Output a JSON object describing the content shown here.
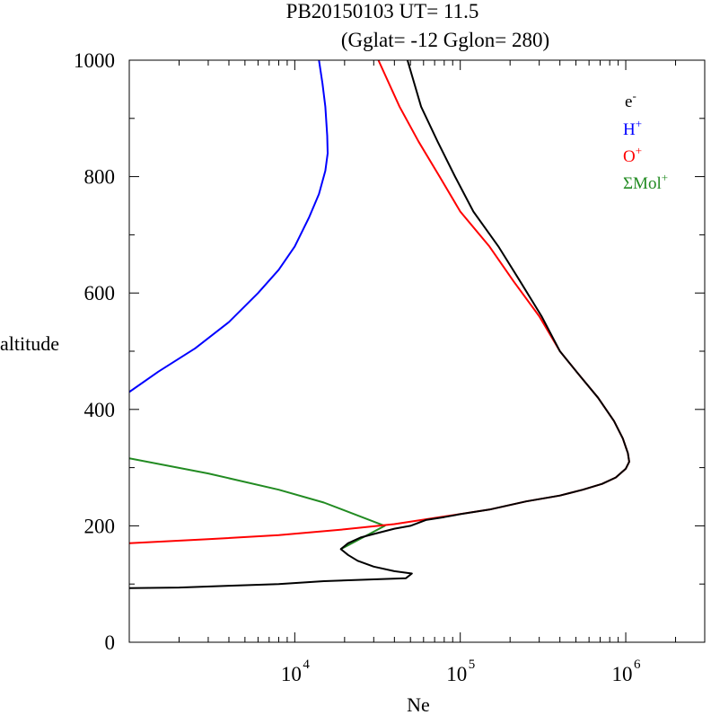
{
  "chart_data": {
    "type": "line",
    "title_line1": "PB20150103   UT=  11.5",
    "title_line2": "(Gglat= -12   Gglon=  280)",
    "xlabel": "Ne",
    "ylabel": "altitude",
    "xscale": "log",
    "xlim": [
      1000,
      3000000
    ],
    "ylim": [
      0,
      1000
    ],
    "x_ticks": [
      {
        "value": 10000,
        "base": "10",
        "exp": "4"
      },
      {
        "value": 100000,
        "base": "10",
        "exp": "5"
      },
      {
        "value": 1000000,
        "base": "10",
        "exp": "6"
      }
    ],
    "y_ticks": [
      {
        "value": 0,
        "label": "0"
      },
      {
        "value": 200,
        "label": "200"
      },
      {
        "value": 400,
        "label": "400"
      },
      {
        "value": 600,
        "label": "600"
      },
      {
        "value": 800,
        "label": "800"
      },
      {
        "value": 1000,
        "label": "1000"
      }
    ],
    "legend_position": "top-right",
    "series": [
      {
        "name": "e-",
        "label_base": "e",
        "label_sup": "-",
        "color": "#000000",
        "points": [
          [
            1000,
            93
          ],
          [
            2000,
            94
          ],
          [
            4000,
            97
          ],
          [
            8000,
            100
          ],
          [
            15000,
            105
          ],
          [
            30000,
            108
          ],
          [
            47000,
            110
          ],
          [
            51000,
            118
          ],
          [
            40000,
            122
          ],
          [
            30000,
            130
          ],
          [
            24000,
            140
          ],
          [
            21000,
            150
          ],
          [
            19000,
            160
          ],
          [
            21000,
            170
          ],
          [
            25000,
            180
          ],
          [
            30000,
            186
          ],
          [
            40000,
            195
          ],
          [
            50000,
            200
          ],
          [
            62000,
            210
          ],
          [
            80000,
            215
          ],
          [
            100000,
            220
          ],
          [
            150000,
            228
          ],
          [
            250000,
            242
          ],
          [
            400000,
            252
          ],
          [
            550000,
            262
          ],
          [
            720000,
            272
          ],
          [
            870000,
            283
          ],
          [
            1000000,
            298
          ],
          [
            1050000,
            310
          ],
          [
            1030000,
            325
          ],
          [
            960000,
            350
          ],
          [
            850000,
            380
          ],
          [
            680000,
            420
          ],
          [
            520000,
            460
          ],
          [
            400000,
            500
          ],
          [
            310000,
            560
          ],
          [
            230000,
            620
          ],
          [
            170000,
            680
          ],
          [
            120000,
            740
          ],
          [
            93000,
            800
          ],
          [
            73000,
            860
          ],
          [
            58000,
            920
          ],
          [
            48000,
            1000
          ]
        ]
      },
      {
        "name": "H+",
        "label_base": "H",
        "label_sup": "+",
        "color": "#0000ff",
        "points": [
          [
            1000,
            430
          ],
          [
            1500,
            465
          ],
          [
            2500,
            505
          ],
          [
            4000,
            550
          ],
          [
            6000,
            600
          ],
          [
            8000,
            640
          ],
          [
            10000,
            680
          ],
          [
            12200,
            730
          ],
          [
            14000,
            770
          ],
          [
            15300,
            810
          ],
          [
            15800,
            840
          ],
          [
            15700,
            870
          ],
          [
            15300,
            920
          ],
          [
            14700,
            960
          ],
          [
            14000,
            1000
          ]
        ]
      },
      {
        "name": "O+",
        "label_base": "O",
        "label_sup": "+",
        "color": "#ff0000",
        "points": [
          [
            1000,
            170
          ],
          [
            3000,
            177
          ],
          [
            8000,
            184
          ],
          [
            20000,
            194
          ],
          [
            40000,
            203
          ],
          [
            80000,
            216
          ],
          [
            150000,
            228
          ],
          [
            250000,
            242
          ],
          [
            400000,
            252
          ],
          [
            550000,
            262
          ],
          [
            720000,
            272
          ],
          [
            870000,
            283
          ],
          [
            1000000,
            298
          ],
          [
            1050000,
            310
          ],
          [
            1030000,
            325
          ],
          [
            960000,
            350
          ],
          [
            850000,
            380
          ],
          [
            680000,
            420
          ],
          [
            520000,
            460
          ],
          [
            400000,
            500
          ],
          [
            300000,
            560
          ],
          [
            210000,
            620
          ],
          [
            150000,
            680
          ],
          [
            100000,
            740
          ],
          [
            75000,
            800
          ],
          [
            56000,
            860
          ],
          [
            43000,
            920
          ],
          [
            32000,
            1000
          ]
        ]
      },
      {
        "name": "ΣMol+",
        "label_base": "ΣMol",
        "label_sup": "+",
        "color": "#228b22",
        "points": [
          [
            1000,
            316
          ],
          [
            3000,
            290
          ],
          [
            8000,
            262
          ],
          [
            15000,
            240
          ],
          [
            35000,
            200
          ],
          [
            27000,
            183
          ],
          [
            19000,
            160
          ]
        ]
      }
    ]
  }
}
